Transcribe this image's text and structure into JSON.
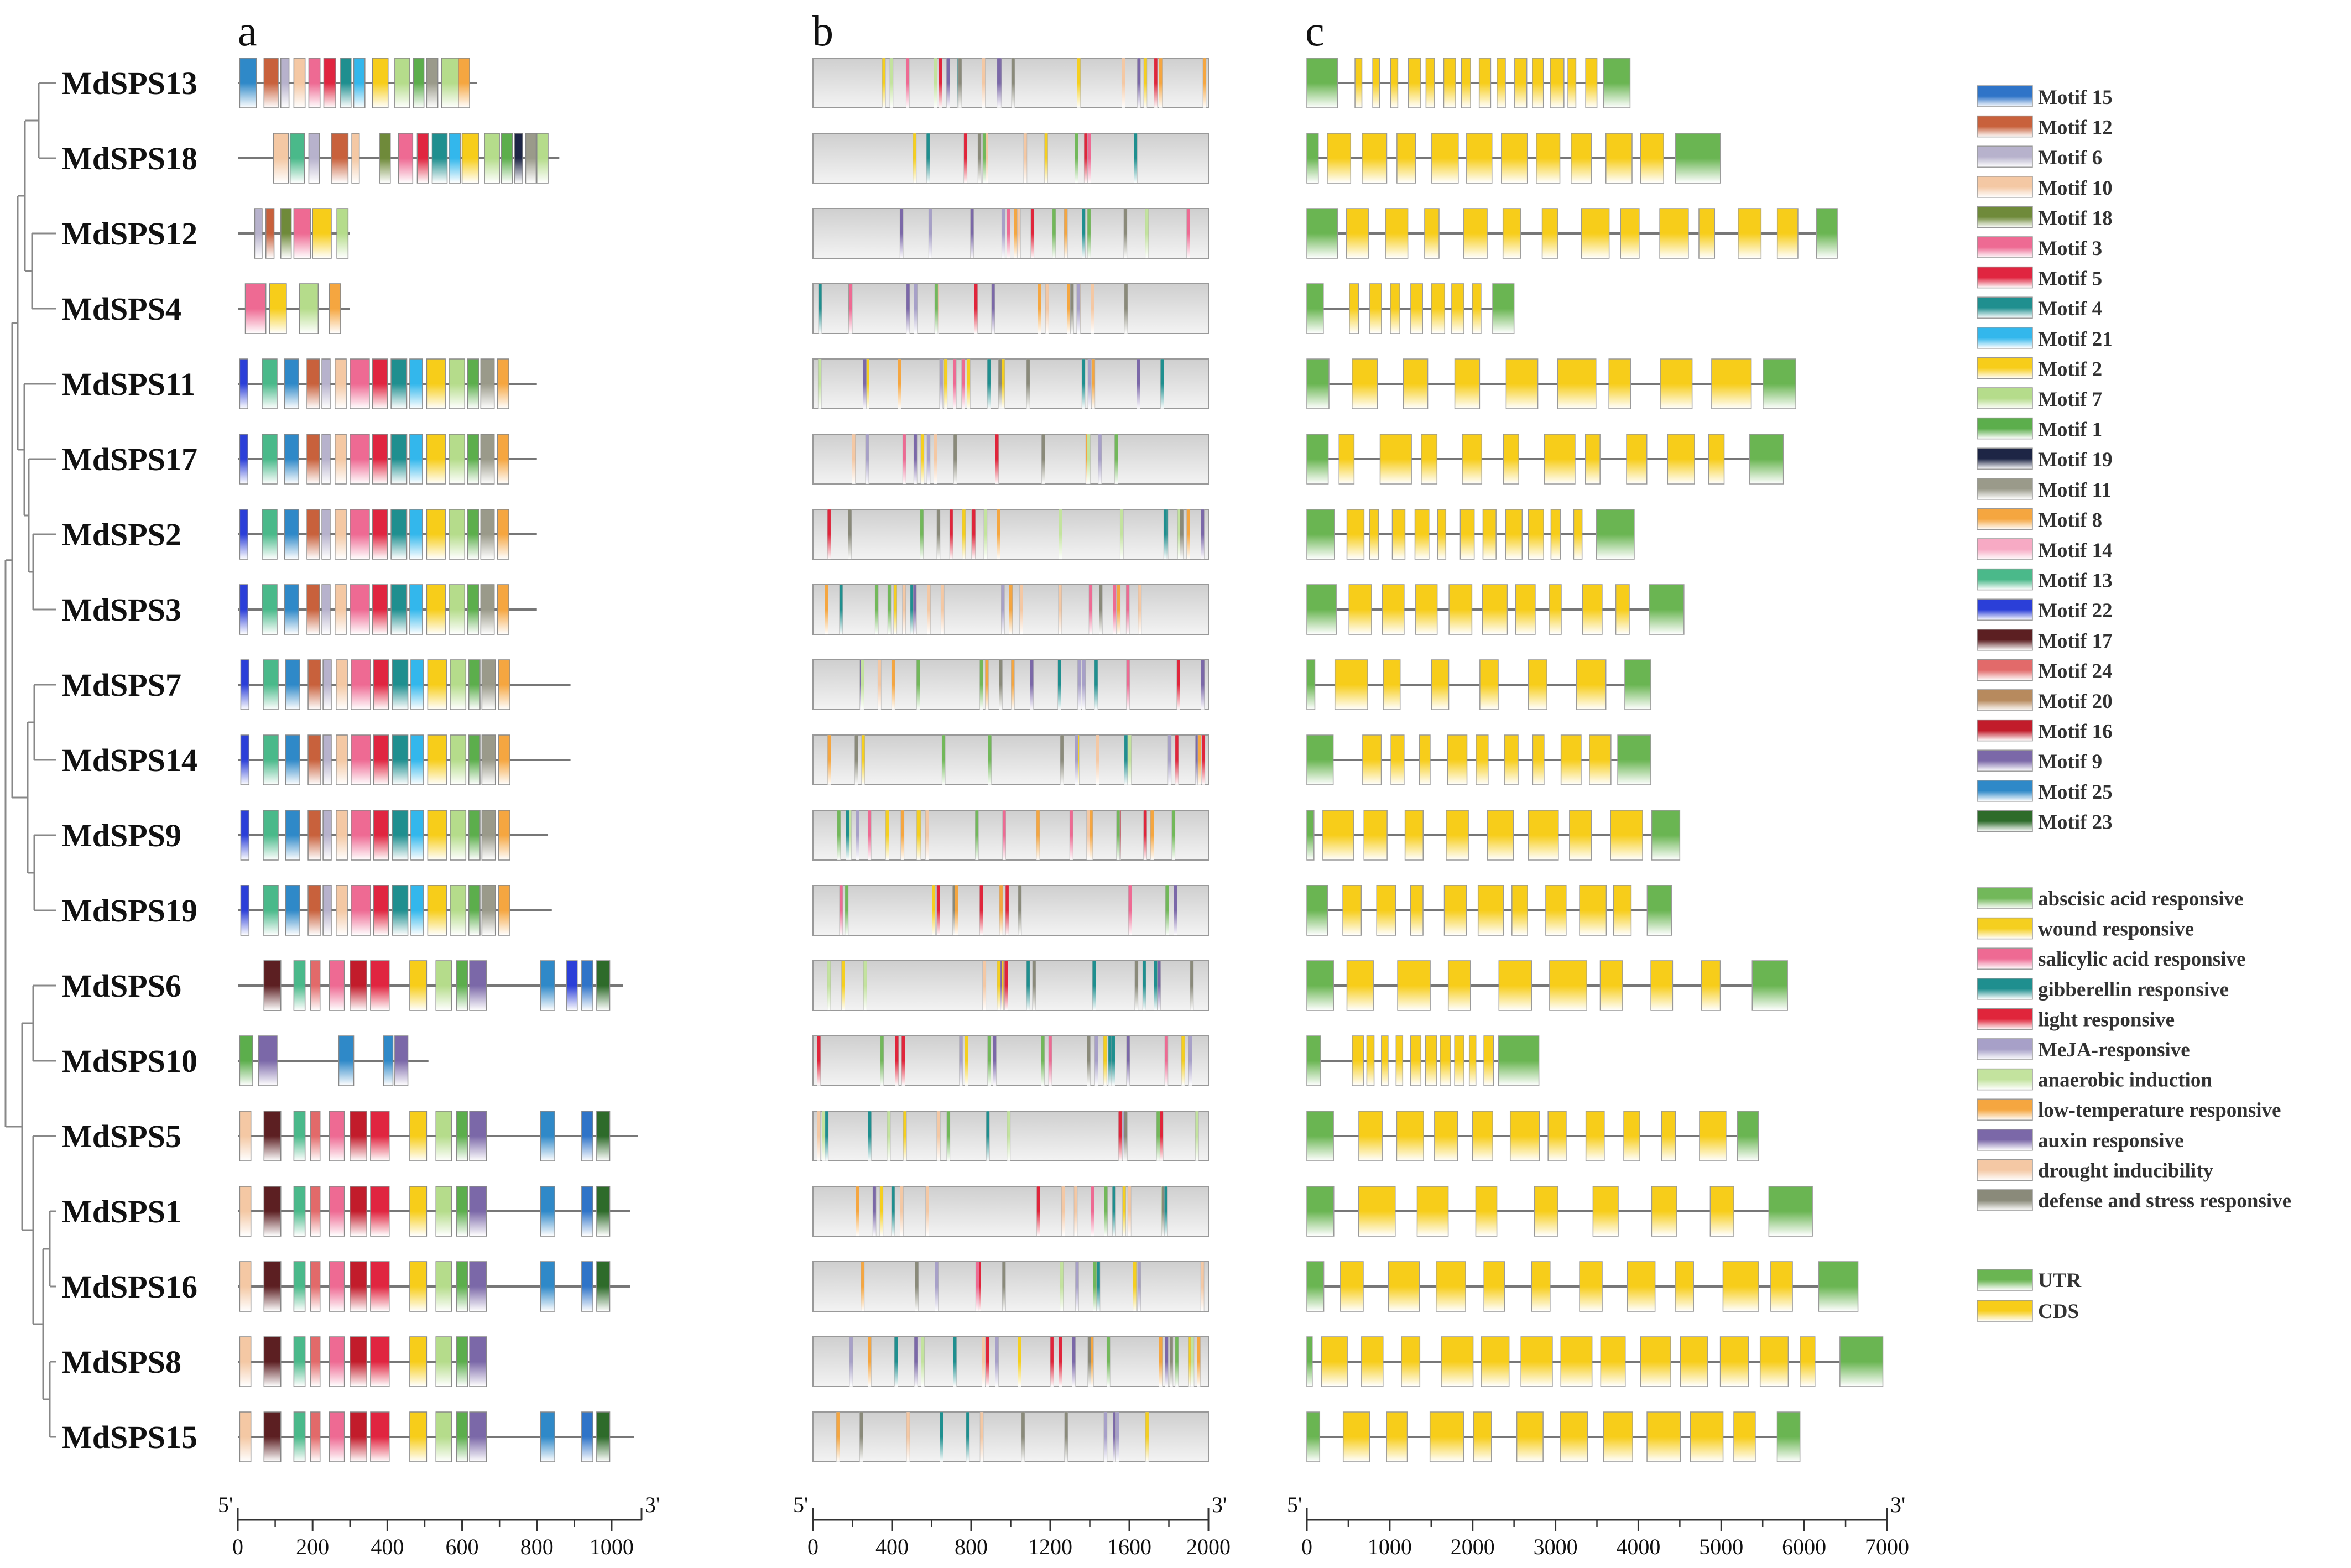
{
  "panels": {
    "a": "a",
    "b": "b",
    "c": "c"
  },
  "genes": [
    "MdSPS13",
    "MdSPS18",
    "MdSPS12",
    "MdSPS4",
    "MdSPS11",
    "MdSPS17",
    "MdSPS2",
    "MdSPS3",
    "MdSPS7",
    "MdSPS14",
    "MdSPS9",
    "MdSPS19",
    "MdSPS6",
    "MdSPS10",
    "MdSPS5",
    "MdSPS1",
    "MdSPS16",
    "MdSPS8",
    "MdSPS15"
  ],
  "axes": {
    "a": {
      "min": 0,
      "max": 1080,
      "ticks": [
        0,
        200,
        400,
        600,
        800,
        1000
      ],
      "start": "5'",
      "end": "3'"
    },
    "b": {
      "min": 0,
      "max": 2000,
      "ticks": [
        0,
        400,
        800,
        1200,
        1600,
        2000
      ],
      "start": "5'",
      "end": "3'"
    },
    "c": {
      "min": 0,
      "max": 7000,
      "ticks": [
        0,
        1000,
        2000,
        3000,
        4000,
        5000,
        6000,
        7000
      ],
      "start": "5'",
      "end": "3'"
    }
  },
  "motif_legend": [
    {
      "label": "Motif 15",
      "color": "#2f74c8"
    },
    {
      "label": "Motif 12",
      "color": "#c8613c"
    },
    {
      "label": "Motif 6",
      "color": "#b7b2cc"
    },
    {
      "label": "Motif 10",
      "color": "#f4c8a4"
    },
    {
      "label": "Motif 18",
      "color": "#6f8a3a"
    },
    {
      "label": "Motif 3",
      "color": "#ee6a93"
    },
    {
      "label": "Motif 5",
      "color": "#e02540"
    },
    {
      "label": "Motif 4",
      "color": "#1f8f8f"
    },
    {
      "label": "Motif 21",
      "color": "#33b7ec"
    },
    {
      "label": "Motif 2",
      "color": "#f7cd1a"
    },
    {
      "label": "Motif 7",
      "color": "#b5dc8b"
    },
    {
      "label": "Motif 1",
      "color": "#5cae4c"
    },
    {
      "label": "Motif 19",
      "color": "#1d2545"
    },
    {
      "label": "Motif 11",
      "color": "#9a9a8a"
    },
    {
      "label": "Motif 8",
      "color": "#f5a640"
    },
    {
      "label": "Motif 14",
      "color": "#f7aac4"
    },
    {
      "label": "Motif 13",
      "color": "#4ab98a"
    },
    {
      "label": "Motif 22",
      "color": "#2b3fd8"
    },
    {
      "label": "Motif 17",
      "color": "#5c1f22"
    },
    {
      "label": "Motif 24",
      "color": "#e26a6a"
    },
    {
      "label": "Motif 20",
      "color": "#b78a5e"
    },
    {
      "label": "Motif 16",
      "color": "#c21c2b"
    },
    {
      "label": "Motif 9",
      "color": "#7b68a8"
    },
    {
      "label": "Motif 25",
      "color": "#2f89c8"
    },
    {
      "label": "Motif 23",
      "color": "#2e6b2a"
    }
  ],
  "element_legend": [
    {
      "label": "abscisic acid responsive",
      "color": "#72b85a"
    },
    {
      "label": "wound responsive",
      "color": "#f5cf1f"
    },
    {
      "label": "salicylic acid responsive",
      "color": "#ee6a93"
    },
    {
      "label": "gibberellin responsive",
      "color": "#1f8f8f"
    },
    {
      "label": "light responsive",
      "color": "#e0253b"
    },
    {
      "label": "MeJA-responsive",
      "color": "#a7a0c8"
    },
    {
      "label": "anaerobic induction",
      "color": "#c3e39e"
    },
    {
      "label": "low-temperature responsive",
      "color": "#f5a640"
    },
    {
      "label": "auxin responsive",
      "color": "#7b68a8"
    },
    {
      "label": "drought inducibility",
      "color": "#f4c8a4"
    },
    {
      "label": "defense and stress responsive",
      "color": "#8a8a7a"
    }
  ],
  "structure_legend": [
    {
      "label": "UTR",
      "color": "#6ab552"
    },
    {
      "label": "CDS",
      "color": "#f7cd1a"
    }
  ],
  "gene_lengths_aa": [
    640,
    860,
    300,
    300,
    800,
    800,
    800,
    800,
    890,
    890,
    830,
    840,
    1030,
    510,
    1070,
    1050,
    1050,
    660,
    1060
  ],
  "gene_lengths_bp": [
    3900,
    4990,
    6400,
    2500,
    5900,
    5750,
    3950,
    4550,
    4150,
    4150,
    4500,
    4400,
    5800,
    2800,
    5450,
    6100,
    6650,
    6950,
    5950
  ]
}
